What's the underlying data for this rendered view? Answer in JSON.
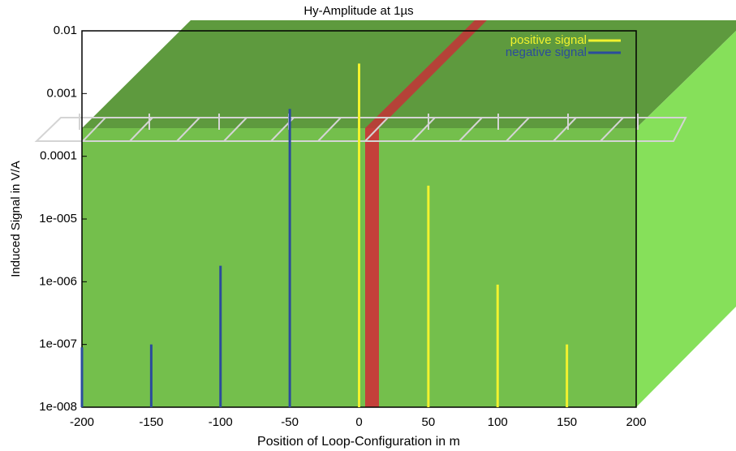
{
  "chart_data": {
    "type": "stem",
    "title": "Hy-Amplitude at 1µs",
    "x_label": "Position of Loop-Configuration in m",
    "y_label": "Induced Signal in V/A",
    "log_y": true,
    "xlim": [
      -200,
      200
    ],
    "xticks": [
      -200,
      -150,
      -100,
      -50,
      0,
      50,
      100,
      150,
      200
    ],
    "ylim": [
      1e-08,
      0.01
    ],
    "yticks": [
      {
        "value": 1e-08,
        "label": "1e-008"
      },
      {
        "value": 1e-07,
        "label": "1e-007"
      },
      {
        "value": 1e-06,
        "label": "1e-006"
      },
      {
        "value": 1e-05,
        "label": "1e-005"
      },
      0.0001,
      0.001,
      0.01
    ],
    "legend": "upper right",
    "series": [
      {
        "name": "positive signal",
        "color": "#f2f22e",
        "x": [
          0,
          50,
          100,
          150
        ],
        "values": [
          0.003,
          3.4e-05,
          9e-07,
          1e-07
        ]
      },
      {
        "name": "negative signal",
        "color": "#2b4c9c",
        "x": [
          -200,
          -150,
          -100,
          -50
        ],
        "values": [
          9e-08,
          1e-07,
          1.8e-06,
          0.00057
        ]
      }
    ]
  }
}
